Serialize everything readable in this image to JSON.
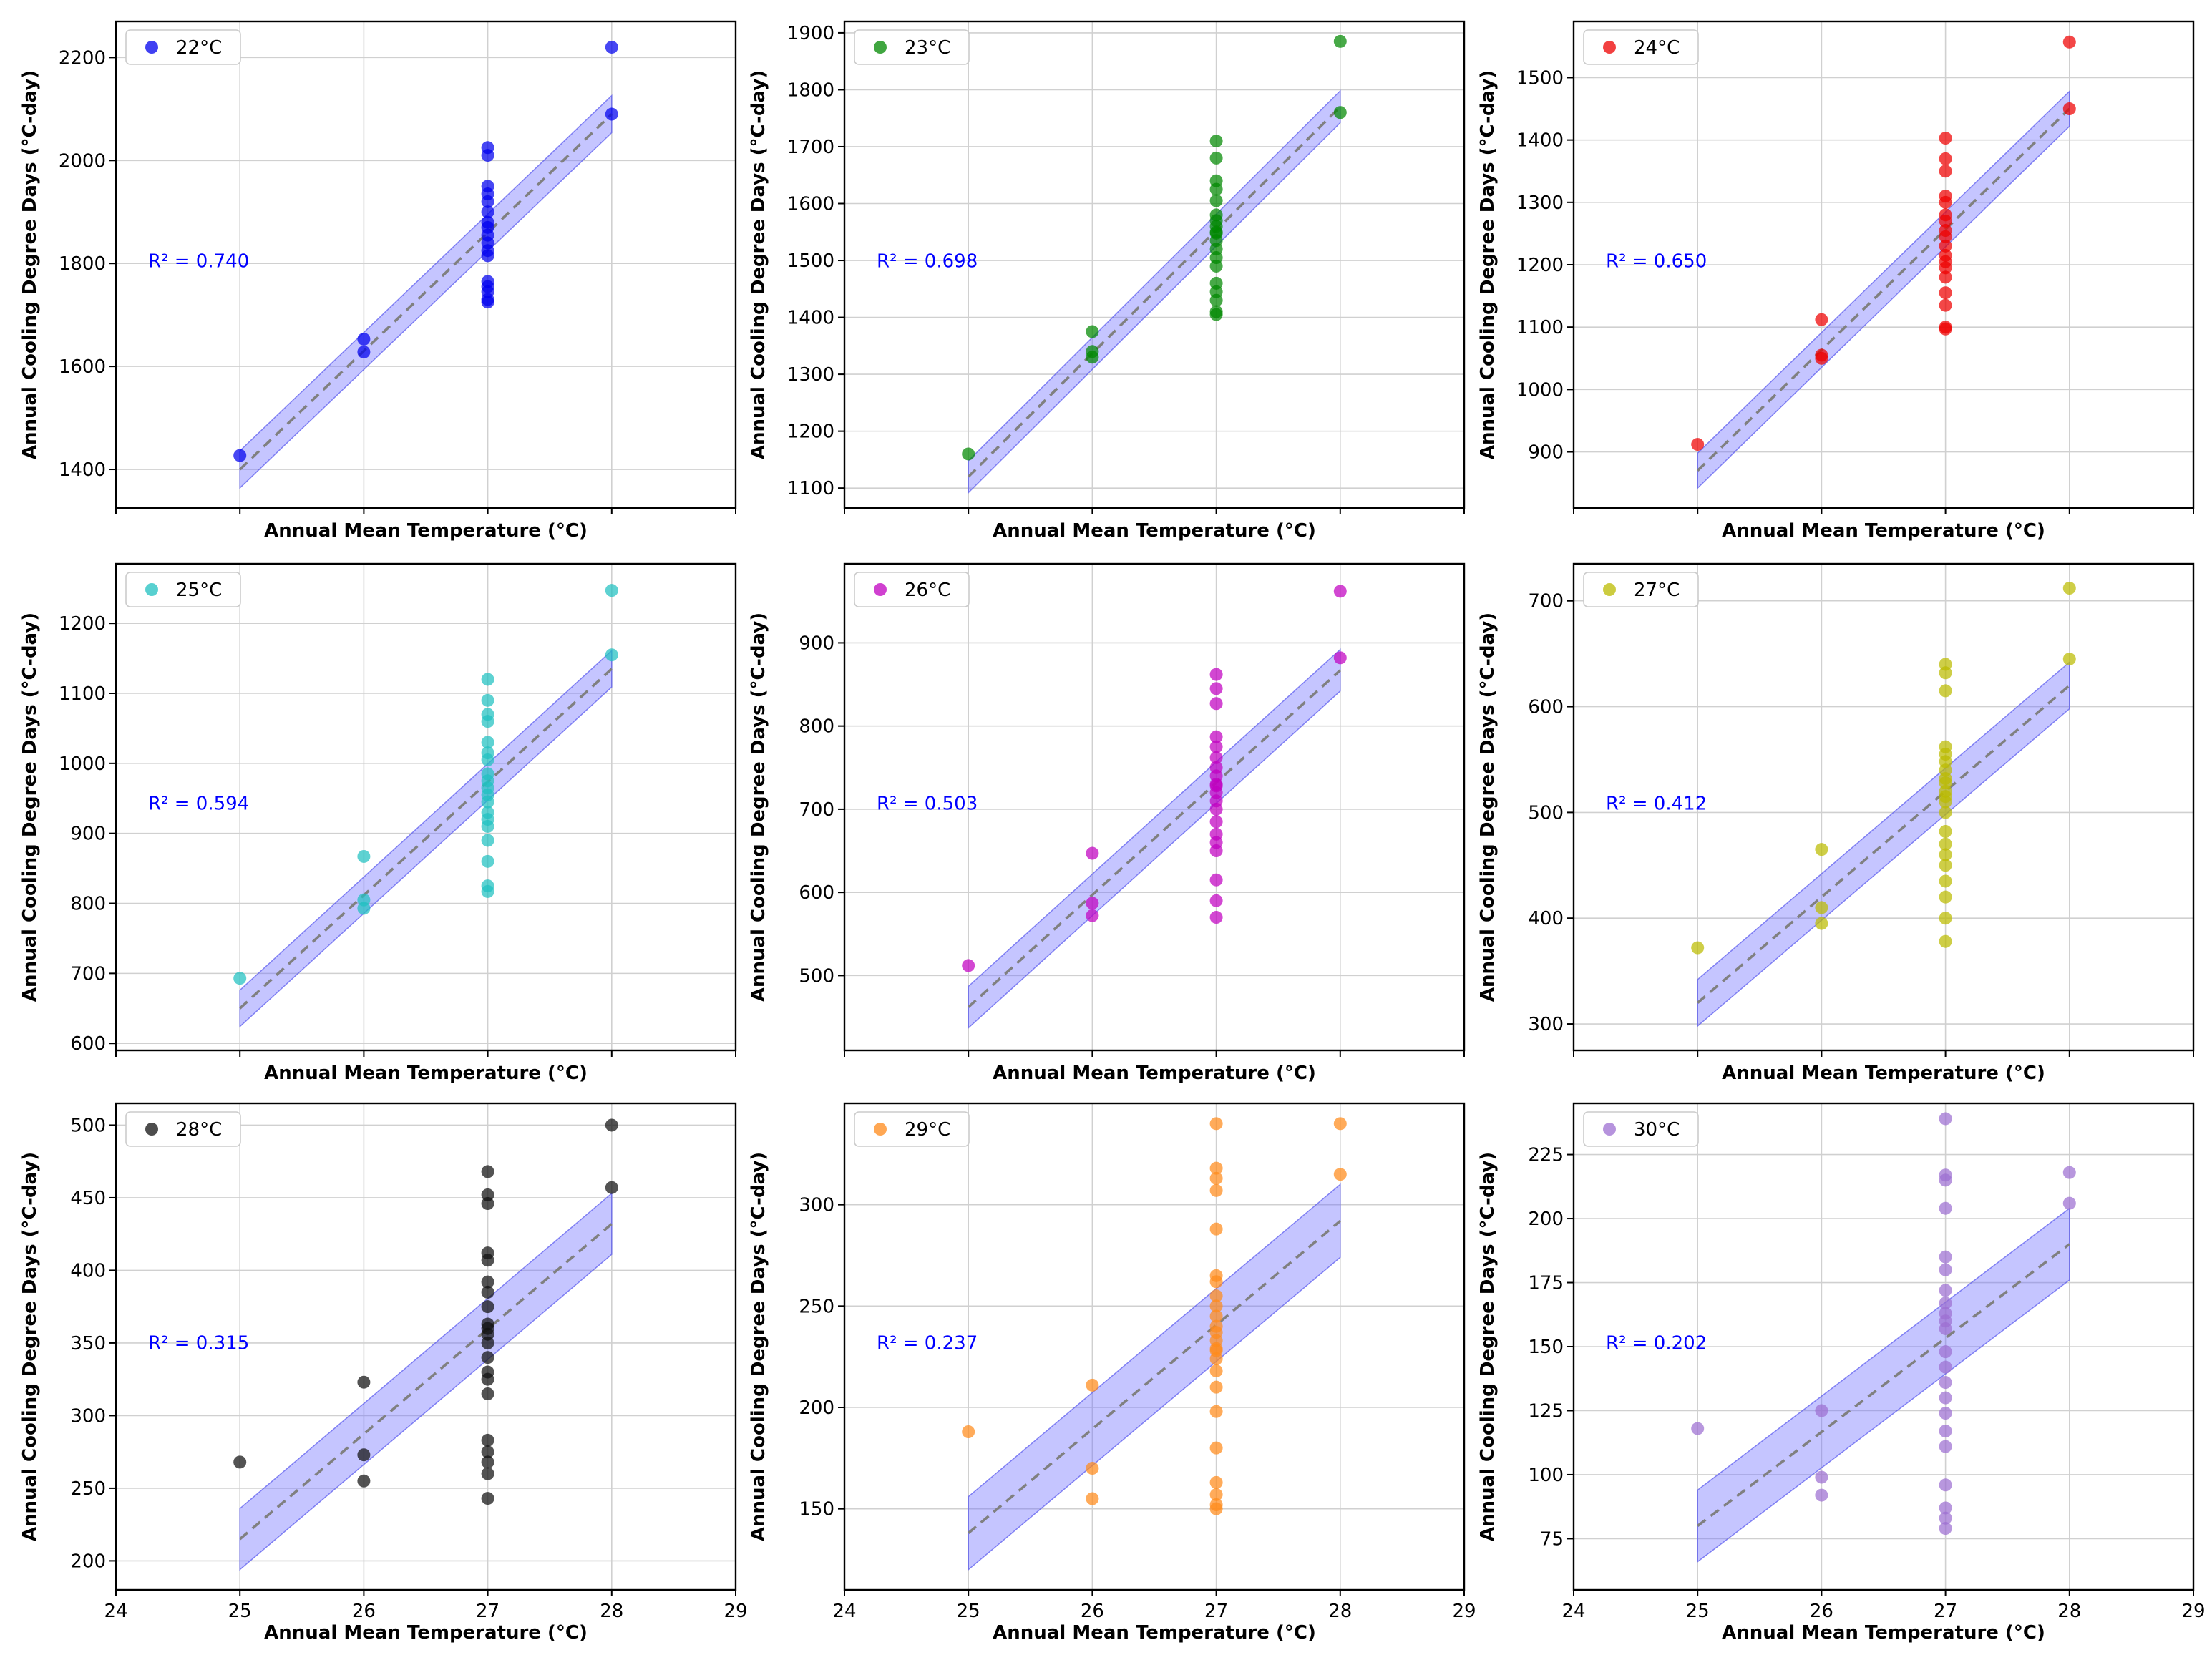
{
  "chart_data": [
    {
      "type": "scatter",
      "legend": "22°C",
      "color": "#0000ee",
      "r2_label": "R² = 0.740",
      "xlabel": "Annual Mean Temperature (°C)",
      "ylabel": "Annual Cooling Degree Days (°C-day)",
      "xlim": [
        24,
        29
      ],
      "xticks": [
        24,
        25,
        26,
        27,
        28,
        29
      ],
      "ylim": [
        1325,
        2270
      ],
      "yticks": [
        1400,
        1600,
        1800,
        2000,
        2200
      ],
      "fit": {
        "x": [
          25,
          28
        ],
        "y": [
          1400,
          2090
        ]
      },
      "band_halfwidth": 36,
      "x": [
        25,
        26,
        26,
        27,
        27,
        27,
        27,
        27,
        27,
        27,
        27,
        27,
        27,
        27,
        27,
        27,
        27,
        27,
        27,
        27,
        28,
        28
      ],
      "y": [
        1427,
        1653,
        1628,
        2025,
        2010,
        1950,
        1935,
        1920,
        1900,
        1880,
        1870,
        1855,
        1840,
        1825,
        1815,
        1765,
        1755,
        1745,
        1730,
        1725,
        2220,
        2090
      ]
    },
    {
      "type": "scatter",
      "legend": "23°C",
      "color": "#008800",
      "r2_label": "R² = 0.698",
      "xlabel": "Annual Mean Temperature (°C)",
      "ylabel": "Annual Cooling Degree Days (°C-day)",
      "xlim": [
        24,
        29
      ],
      "xticks": [
        24,
        25,
        26,
        27,
        28,
        29
      ],
      "ylim": [
        1065,
        1920
      ],
      "yticks": [
        1100,
        1200,
        1300,
        1400,
        1500,
        1600,
        1700,
        1800,
        1900
      ],
      "fit": {
        "x": [
          25,
          28
        ],
        "y": [
          1120,
          1770
        ]
      },
      "band_halfwidth": 28,
      "x": [
        25,
        26,
        26,
        26,
        27,
        27,
        27,
        27,
        27,
        27,
        27,
        27,
        27,
        27,
        27,
        27,
        27,
        27,
        27,
        27,
        27,
        27,
        27,
        28,
        28
      ],
      "y": [
        1160,
        1375,
        1340,
        1330,
        1710,
        1680,
        1640,
        1625,
        1605,
        1580,
        1570,
        1560,
        1548,
        1535,
        1520,
        1505,
        1490,
        1460,
        1445,
        1430,
        1410,
        1405,
        1550,
        1885,
        1760
      ]
    },
    {
      "type": "scatter",
      "legend": "24°C",
      "color": "#ee0000",
      "r2_label": "R² = 0.650",
      "xlabel": "Annual Mean Temperature (°C)",
      "ylabel": "Annual Cooling Degree Days (°C-day)",
      "xlim": [
        24,
        29
      ],
      "xticks": [
        24,
        25,
        26,
        27,
        28,
        29
      ],
      "ylim": [
        810,
        1590
      ],
      "yticks": [
        900,
        1000,
        1100,
        1200,
        1300,
        1400,
        1500
      ],
      "fit": {
        "x": [
          25,
          28
        ],
        "y": [
          870,
          1450
        ]
      },
      "band_halfwidth": 28,
      "x": [
        25,
        26,
        26,
        26,
        27,
        27,
        27,
        27,
        27,
        27,
        27,
        27,
        27,
        27,
        27,
        27,
        27,
        27,
        27,
        27,
        27,
        27,
        28,
        28
      ],
      "y": [
        912,
        1112,
        1055,
        1050,
        1403,
        1370,
        1350,
        1310,
        1300,
        1280,
        1270,
        1255,
        1245,
        1230,
        1215,
        1205,
        1195,
        1180,
        1155,
        1135,
        1100,
        1097,
        1557,
        1450
      ]
    },
    {
      "type": "scatter",
      "legend": "25°C",
      "color": "#20c0c0",
      "r2_label": "R² = 0.594",
      "xlabel": "Annual Mean Temperature (°C)",
      "ylabel": "Annual Cooling Degree Days (°C-day)",
      "xlim": [
        24,
        29
      ],
      "xticks": [
        24,
        25,
        26,
        27,
        28,
        29
      ],
      "ylim": [
        590,
        1285
      ],
      "yticks": [
        600,
        700,
        800,
        900,
        1000,
        1100,
        1200
      ],
      "fit": {
        "x": [
          25,
          28
        ],
        "y": [
          650,
          1135
        ]
      },
      "band_halfwidth": 26,
      "x": [
        25,
        26,
        26,
        26,
        27,
        27,
        27,
        27,
        27,
        27,
        27,
        27,
        27,
        27,
        27,
        27,
        27,
        27,
        27,
        27,
        27,
        27,
        27,
        28,
        28
      ],
      "y": [
        693,
        867,
        805,
        793,
        1120,
        1090,
        1070,
        1060,
        1030,
        1015,
        1005,
        985,
        975,
        965,
        955,
        945,
        930,
        920,
        910,
        890,
        860,
        825,
        817,
        1247,
        1155
      ]
    },
    {
      "type": "scatter",
      "legend": "26°C",
      "color": "#c000c0",
      "r2_label": "R² = 0.503",
      "xlabel": "Annual Mean Temperature (°C)",
      "ylabel": "Annual Cooling Degree Days (°C-day)",
      "xlim": [
        24,
        29
      ],
      "xticks": [
        24,
        25,
        26,
        27,
        28,
        29
      ],
      "ylim": [
        410,
        995
      ],
      "yticks": [
        500,
        600,
        700,
        800,
        900
      ],
      "fit": {
        "x": [
          25,
          28
        ],
        "y": [
          462,
          867
        ]
      },
      "band_halfwidth": 25,
      "x": [
        25,
        26,
        26,
        26,
        27,
        27,
        27,
        27,
        27,
        27,
        27,
        27,
        27,
        27,
        27,
        27,
        27,
        27,
        27,
        27,
        27,
        27,
        27,
        27,
        28,
        28
      ],
      "y": [
        512,
        647,
        587,
        572,
        862,
        845,
        827,
        787,
        775,
        762,
        750,
        740,
        730,
        720,
        710,
        685,
        670,
        660,
        650,
        615,
        590,
        570,
        728,
        700,
        962,
        882
      ]
    },
    {
      "type": "scatter",
      "legend": "27°C",
      "color": "#bbbb00",
      "r2_label": "R² = 0.412",
      "xlabel": "Annual Mean Temperature (°C)",
      "ylabel": "Annual Cooling Degree Days (°C-day)",
      "xlim": [
        24,
        29
      ],
      "xticks": [
        24,
        25,
        26,
        27,
        28,
        29
      ],
      "ylim": [
        275,
        735
      ],
      "yticks": [
        300,
        400,
        500,
        600,
        700
      ],
      "fit": {
        "x": [
          25,
          28
        ],
        "y": [
          320,
          620
        ]
      },
      "band_halfwidth": 22,
      "x": [
        25,
        26,
        26,
        26,
        27,
        27,
        27,
        27,
        27,
        27,
        27,
        27,
        27,
        27,
        27,
        27,
        27,
        27,
        27,
        27,
        27,
        27,
        27,
        27,
        27,
        28,
        28
      ],
      "y": [
        372,
        465,
        410,
        395,
        640,
        632,
        615,
        562,
        555,
        548,
        540,
        532,
        520,
        510,
        500,
        482,
        470,
        460,
        450,
        435,
        420,
        400,
        378,
        528,
        515,
        712,
        645
      ]
    },
    {
      "type": "scatter",
      "legend": "28°C",
      "color": "#111111",
      "r2_label": "R² = 0.315",
      "xlabel": "Annual Mean Temperature (°C)",
      "ylabel": "Annual Cooling Degree Days (°C-day)",
      "xlim": [
        24,
        29
      ],
      "xticks": [
        24,
        25,
        26,
        27,
        28,
        29
      ],
      "ylim": [
        180,
        515
      ],
      "yticks": [
        200,
        250,
        300,
        350,
        400,
        450,
        500
      ],
      "fit": {
        "x": [
          25,
          28
        ],
        "y": [
          215,
          432
        ]
      },
      "band_halfwidth": 21,
      "x": [
        25,
        26,
        26,
        26,
        27,
        27,
        27,
        27,
        27,
        27,
        27,
        27,
        27,
        27,
        27,
        27,
        27,
        27,
        27,
        27,
        27,
        27,
        27,
        27,
        27,
        28,
        28
      ],
      "y": [
        268,
        323,
        273,
        255,
        468,
        452,
        446,
        412,
        407,
        392,
        385,
        375,
        363,
        356,
        350,
        340,
        330,
        325,
        315,
        283,
        275,
        268,
        260,
        243,
        360,
        500,
        457
      ]
    },
    {
      "type": "scatter",
      "legend": "29°C",
      "color": "#ff8a1a",
      "r2_label": "R² = 0.237",
      "xlabel": "Annual Mean Temperature (°C)",
      "ylabel": "Annual Cooling Degree Days (°C-day)",
      "xlim": [
        24,
        29
      ],
      "xticks": [
        24,
        25,
        26,
        27,
        28,
        29
      ],
      "ylim": [
        110,
        350
      ],
      "yticks": [
        150,
        200,
        250,
        300
      ],
      "fit": {
        "x": [
          25,
          28
        ],
        "y": [
          138,
          292
        ]
      },
      "band_halfwidth": 18,
      "x": [
        25,
        26,
        26,
        26,
        27,
        27,
        27,
        27,
        27,
        27,
        27,
        27,
        27,
        27,
        27,
        27,
        27,
        27,
        27,
        27,
        27,
        27,
        27,
        27,
        27,
        27,
        27,
        27,
        28,
        28
      ],
      "y": [
        188,
        211,
        170,
        155,
        340,
        318,
        313,
        307,
        288,
        265,
        262,
        250,
        240,
        237,
        233,
        229,
        224,
        218,
        210,
        198,
        180,
        163,
        157,
        152,
        150,
        255,
        245,
        228,
        340,
        315
      ]
    },
    {
      "type": "scatter",
      "legend": "30°C",
      "color": "#9d6fd1",
      "r2_label": "R² = 0.202",
      "xlabel": "Annual Mean Temperature (°C)",
      "ylabel": "Annual Cooling Degree Days (°C-day)",
      "xlim": [
        24,
        29
      ],
      "xticks": [
        24,
        25,
        26,
        27,
        28,
        29
      ],
      "ylim": [
        55,
        245
      ],
      "yticks": [
        75,
        100,
        125,
        150,
        175,
        200,
        225
      ],
      "fit": {
        "x": [
          25,
          28
        ],
        "y": [
          80,
          190
        ]
      },
      "band_halfwidth": 14,
      "x": [
        25,
        26,
        26,
        26,
        27,
        27,
        27,
        27,
        27,
        27,
        27,
        27,
        27,
        27,
        27,
        27,
        27,
        27,
        27,
        27,
        27,
        27,
        27,
        27,
        27,
        27,
        28,
        28
      ],
      "y": [
        118,
        125,
        99,
        92,
        239,
        217,
        215,
        204,
        185,
        180,
        167,
        163,
        160,
        157,
        148,
        142,
        136,
        130,
        124,
        117,
        111,
        96,
        87,
        83,
        79,
        172,
        218,
        206
      ]
    }
  ]
}
